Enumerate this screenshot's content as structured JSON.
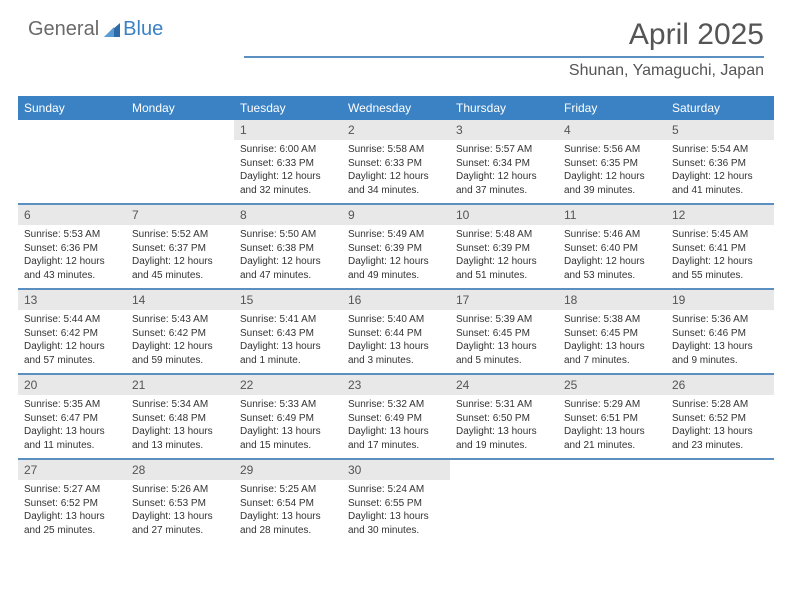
{
  "logo": {
    "text1": "General",
    "text2": "Blue"
  },
  "title": "April 2025",
  "location": "Shunan, Yamaguchi, Japan",
  "colors": {
    "header_blue": "#3b82c4",
    "divider_blue": "#5a8fbf",
    "daynum_bg": "#e8e8e8",
    "text": "#333333",
    "muted": "#555555"
  },
  "weekdays": [
    "Sunday",
    "Monday",
    "Tuesday",
    "Wednesday",
    "Thursday",
    "Friday",
    "Saturday"
  ],
  "weeks": [
    [
      null,
      null,
      {
        "n": "1",
        "sunrise": "6:00 AM",
        "sunset": "6:33 PM",
        "day_h": "12",
        "day_m": "32"
      },
      {
        "n": "2",
        "sunrise": "5:58 AM",
        "sunset": "6:33 PM",
        "day_h": "12",
        "day_m": "34"
      },
      {
        "n": "3",
        "sunrise": "5:57 AM",
        "sunset": "6:34 PM",
        "day_h": "12",
        "day_m": "37"
      },
      {
        "n": "4",
        "sunrise": "5:56 AM",
        "sunset": "6:35 PM",
        "day_h": "12",
        "day_m": "39"
      },
      {
        "n": "5",
        "sunrise": "5:54 AM",
        "sunset": "6:36 PM",
        "day_h": "12",
        "day_m": "41"
      }
    ],
    [
      {
        "n": "6",
        "sunrise": "5:53 AM",
        "sunset": "6:36 PM",
        "day_h": "12",
        "day_m": "43"
      },
      {
        "n": "7",
        "sunrise": "5:52 AM",
        "sunset": "6:37 PM",
        "day_h": "12",
        "day_m": "45"
      },
      {
        "n": "8",
        "sunrise": "5:50 AM",
        "sunset": "6:38 PM",
        "day_h": "12",
        "day_m": "47"
      },
      {
        "n": "9",
        "sunrise": "5:49 AM",
        "sunset": "6:39 PM",
        "day_h": "12",
        "day_m": "49"
      },
      {
        "n": "10",
        "sunrise": "5:48 AM",
        "sunset": "6:39 PM",
        "day_h": "12",
        "day_m": "51"
      },
      {
        "n": "11",
        "sunrise": "5:46 AM",
        "sunset": "6:40 PM",
        "day_h": "12",
        "day_m": "53"
      },
      {
        "n": "12",
        "sunrise": "5:45 AM",
        "sunset": "6:41 PM",
        "day_h": "12",
        "day_m": "55"
      }
    ],
    [
      {
        "n": "13",
        "sunrise": "5:44 AM",
        "sunset": "6:42 PM",
        "day_h": "12",
        "day_m": "57"
      },
      {
        "n": "14",
        "sunrise": "5:43 AM",
        "sunset": "6:42 PM",
        "day_h": "12",
        "day_m": "59"
      },
      {
        "n": "15",
        "sunrise": "5:41 AM",
        "sunset": "6:43 PM",
        "day_h": "13",
        "day_m": "1",
        "unit": "minute"
      },
      {
        "n": "16",
        "sunrise": "5:40 AM",
        "sunset": "6:44 PM",
        "day_h": "13",
        "day_m": "3"
      },
      {
        "n": "17",
        "sunrise": "5:39 AM",
        "sunset": "6:45 PM",
        "day_h": "13",
        "day_m": "5"
      },
      {
        "n": "18",
        "sunrise": "5:38 AM",
        "sunset": "6:45 PM",
        "day_h": "13",
        "day_m": "7"
      },
      {
        "n": "19",
        "sunrise": "5:36 AM",
        "sunset": "6:46 PM",
        "day_h": "13",
        "day_m": "9"
      }
    ],
    [
      {
        "n": "20",
        "sunrise": "5:35 AM",
        "sunset": "6:47 PM",
        "day_h": "13",
        "day_m": "11"
      },
      {
        "n": "21",
        "sunrise": "5:34 AM",
        "sunset": "6:48 PM",
        "day_h": "13",
        "day_m": "13"
      },
      {
        "n": "22",
        "sunrise": "5:33 AM",
        "sunset": "6:49 PM",
        "day_h": "13",
        "day_m": "15"
      },
      {
        "n": "23",
        "sunrise": "5:32 AM",
        "sunset": "6:49 PM",
        "day_h": "13",
        "day_m": "17"
      },
      {
        "n": "24",
        "sunrise": "5:31 AM",
        "sunset": "6:50 PM",
        "day_h": "13",
        "day_m": "19"
      },
      {
        "n": "25",
        "sunrise": "5:29 AM",
        "sunset": "6:51 PM",
        "day_h": "13",
        "day_m": "21"
      },
      {
        "n": "26",
        "sunrise": "5:28 AM",
        "sunset": "6:52 PM",
        "day_h": "13",
        "day_m": "23"
      }
    ],
    [
      {
        "n": "27",
        "sunrise": "5:27 AM",
        "sunset": "6:52 PM",
        "day_h": "13",
        "day_m": "25"
      },
      {
        "n": "28",
        "sunrise": "5:26 AM",
        "sunset": "6:53 PM",
        "day_h": "13",
        "day_m": "27"
      },
      {
        "n": "29",
        "sunrise": "5:25 AM",
        "sunset": "6:54 PM",
        "day_h": "13",
        "day_m": "28"
      },
      {
        "n": "30",
        "sunrise": "5:24 AM",
        "sunset": "6:55 PM",
        "day_h": "13",
        "day_m": "30"
      },
      null,
      null,
      null
    ]
  ]
}
